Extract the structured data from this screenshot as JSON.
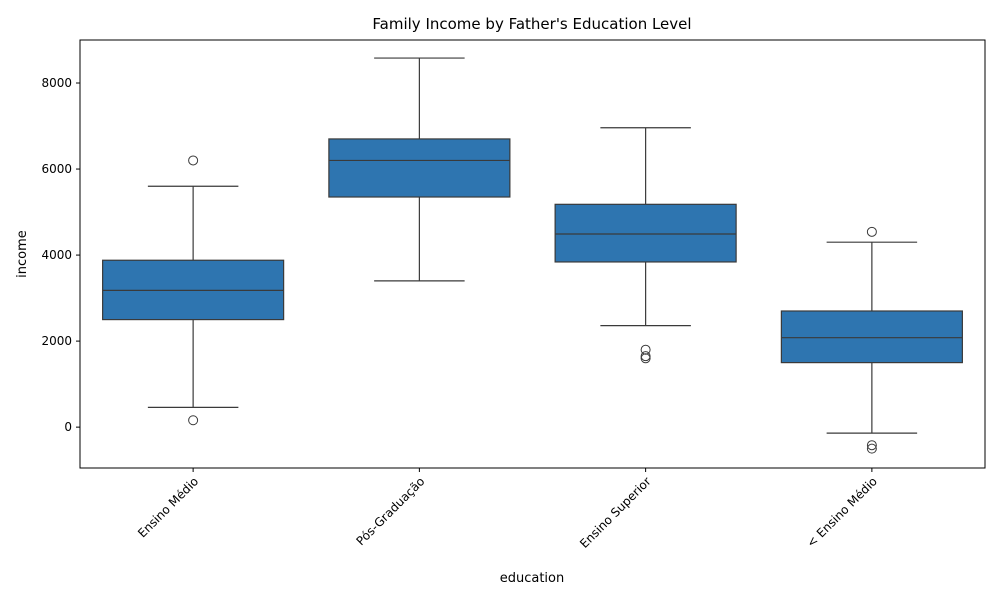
{
  "chart_data": {
    "type": "box",
    "title": "Family Income by Father's Education Level",
    "xlabel": "education",
    "ylabel": "income",
    "ylim": [
      -950,
      9000
    ],
    "yticks": [
      0,
      2000,
      4000,
      6000,
      8000
    ],
    "grid": false,
    "box_color": "#2e75b0",
    "line_color": "#3a3a3a",
    "categories": [
      "Ensino Médio",
      "Pós-Graduação",
      "Ensino Superior",
      "< Ensino Médio"
    ],
    "boxes": [
      {
        "category": "Ensino Médio",
        "whisker_low": 460,
        "q1": 2500,
        "median": 3180,
        "q3": 3880,
        "whisker_high": 5600,
        "outliers": [
          6200,
          160
        ]
      },
      {
        "category": "Pós-Graduação",
        "whisker_low": 3400,
        "q1": 5350,
        "median": 6200,
        "q3": 6700,
        "whisker_high": 8580,
        "outliers": []
      },
      {
        "category": "Ensino Superior",
        "whisker_low": 2360,
        "q1": 3840,
        "median": 4490,
        "q3": 5180,
        "whisker_high": 6960,
        "outliers": [
          1800,
          1650,
          1600
        ]
      },
      {
        "category": "< Ensino Médio",
        "whisker_low": -140,
        "q1": 1500,
        "median": 2080,
        "q3": 2700,
        "whisker_high": 4300,
        "outliers": [
          4540,
          -420,
          -500
        ]
      }
    ]
  }
}
